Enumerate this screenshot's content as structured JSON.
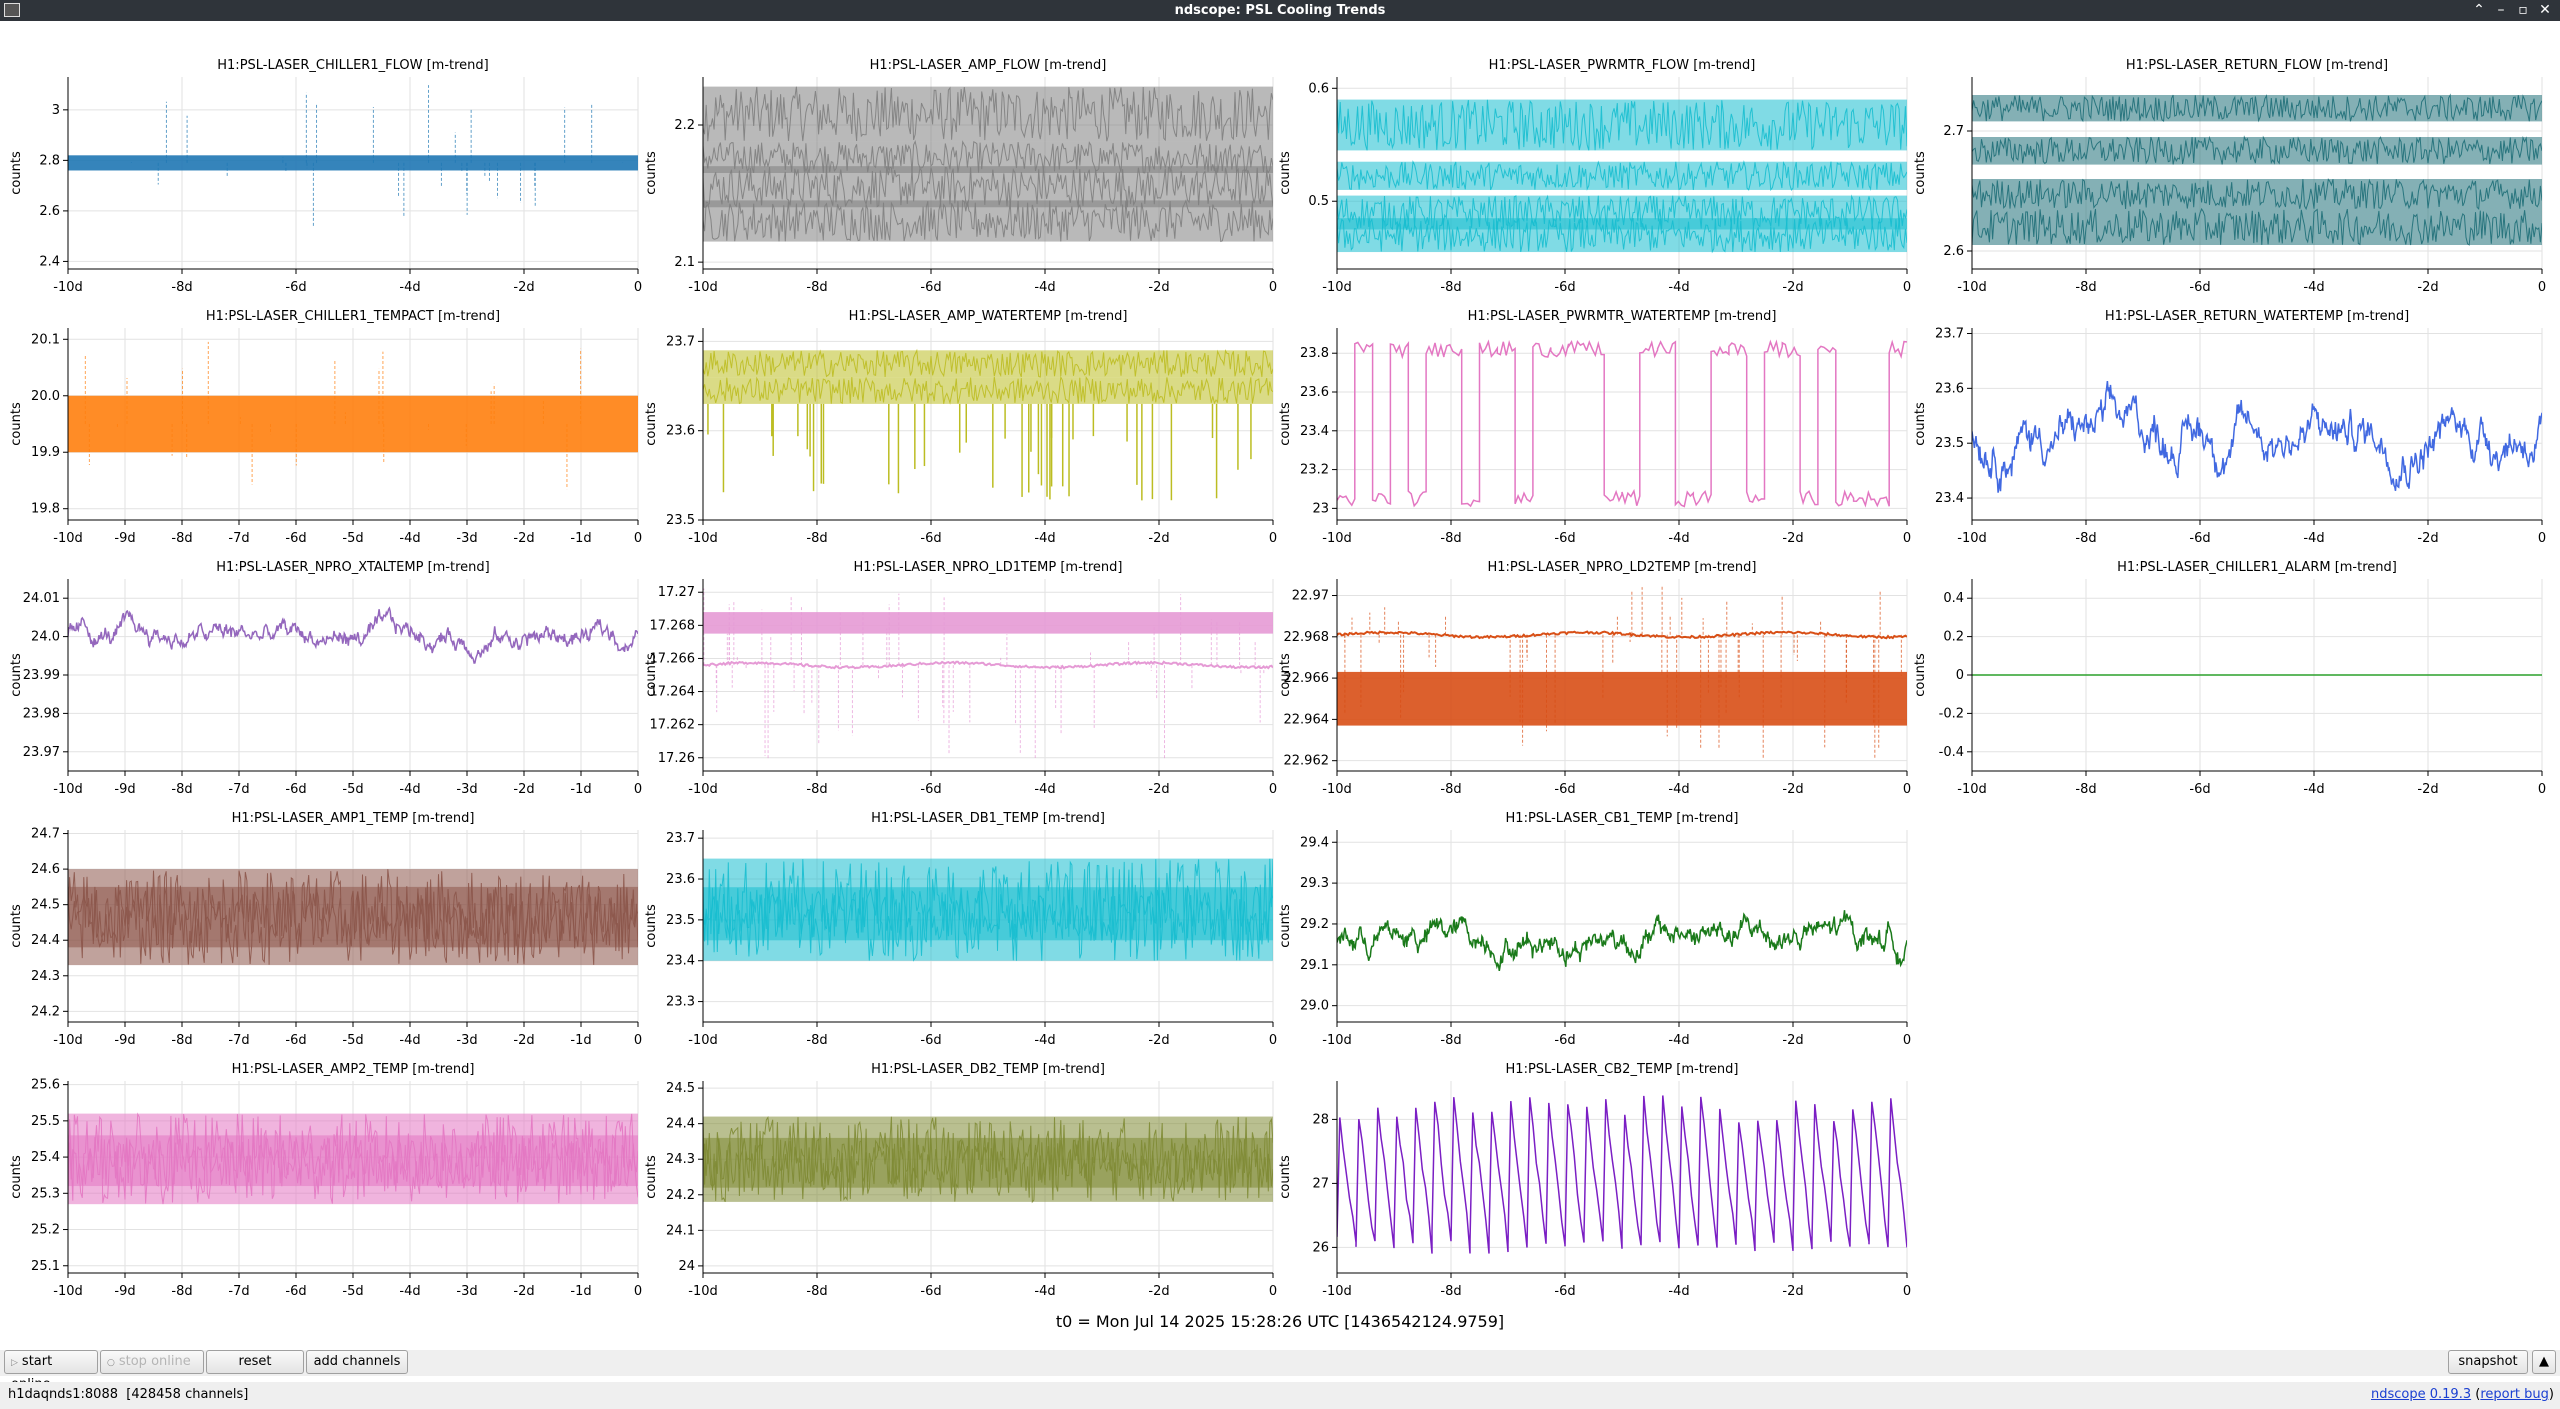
{
  "window": {
    "title": "ndscope: PSL Cooling Trends"
  },
  "colors": {
    "titlebar": "#2f343a",
    "grid": "#e2e2e2",
    "axis": "#000000",
    "zero_line": "#2ca02c"
  },
  "t0_label": "t0 = Mon Jul 14 2025 15:28:26 UTC [1436542124.9759]",
  "toolbar": {
    "start_online": "start online",
    "stop_online": "stop online",
    "reset": "reset",
    "add_channels": "add channels",
    "snapshot": "snapshot"
  },
  "statusbar": {
    "server": "h1daqnds1:8088",
    "channel_count": "[428458 channels]",
    "app_name": "ndscope",
    "version": "0.19.3",
    "report_bug": "report bug"
  },
  "chart_data": [
    {
      "type": "line",
      "title": "H1:PSL-LASER_CHILLER1_FLOW [m-trend]",
      "ylabel": "counts",
      "color": "#1f77b4",
      "xticks": [
        "-10d",
        "-8d",
        "-6d",
        "-4d",
        "-2d",
        "0"
      ],
      "yticks": [
        "2.4",
        "2.6",
        "2.8",
        "3"
      ],
      "ylim": [
        2.37,
        3.13
      ],
      "style": "band",
      "bands": [
        [
          2.76,
          2.82
        ]
      ],
      "spikes": {
        "count": 30,
        "min": 2.52,
        "max": 3.1
      }
    },
    {
      "type": "line",
      "title": "H1:PSL-LASER_AMP_FLOW [m-trend]",
      "ylabel": "counts",
      "color": "#7f7f7f",
      "xticks": [
        "-10d",
        "-8d",
        "-6d",
        "-4d",
        "-2d",
        "0"
      ],
      "yticks": [
        "2.1",
        "2.2"
      ],
      "ylim": [
        2.095,
        2.235
      ],
      "style": "noise",
      "bands": [
        [
          2.188,
          2.228
        ],
        [
          2.165,
          2.188
        ],
        [
          2.14,
          2.17
        ],
        [
          2.115,
          2.145
        ]
      ]
    },
    {
      "type": "line",
      "title": "H1:PSL-LASER_PWRMTR_FLOW [m-trend]",
      "ylabel": "counts",
      "color": "#17becf",
      "xticks": [
        "-10d",
        "-8d",
        "-6d",
        "-4d",
        "-2d",
        "0"
      ],
      "yticks": [
        "0.5",
        "0.6"
      ],
      "ylim": [
        0.44,
        0.61
      ],
      "style": "noise",
      "bands": [
        [
          0.545,
          0.59
        ],
        [
          0.51,
          0.535
        ],
        [
          0.475,
          0.505
        ],
        [
          0.455,
          0.485
        ]
      ]
    },
    {
      "type": "line",
      "title": "H1:PSL-LASER_RETURN_FLOW [m-trend]",
      "ylabel": "counts",
      "color": "#1f6f78",
      "xticks": [
        "-10d",
        "-8d",
        "-6d",
        "-4d",
        "-2d",
        "0"
      ],
      "yticks": [
        "2.6",
        "2.7"
      ],
      "ylim": [
        2.585,
        2.745
      ],
      "style": "noise",
      "bands": [
        [
          2.708,
          2.73
        ],
        [
          2.672,
          2.695
        ],
        [
          2.635,
          2.66
        ],
        [
          2.605,
          2.635
        ]
      ]
    },
    {
      "type": "line",
      "title": "H1:PSL-LASER_CHILLER1_TEMPACT [m-trend]",
      "ylabel": "counts",
      "color": "#ff7f0e",
      "xticks": [
        "-10d",
        "-9d",
        "-8d",
        "-7d",
        "-6d",
        "-5d",
        "-4d",
        "-3d",
        "-2d",
        "-1d",
        "0"
      ],
      "yticks": [
        "19.8",
        "19.9",
        "20.0",
        "20.1"
      ],
      "ylim": [
        19.78,
        20.12
      ],
      "style": "band",
      "bands": [
        [
          19.9,
          20.0
        ]
      ],
      "spikes": {
        "count": 24,
        "min": 19.81,
        "max": 20.1
      }
    },
    {
      "type": "line",
      "title": "H1:PSL-LASER_AMP_WATERTEMP [m-trend]",
      "ylabel": "counts",
      "color": "#bcbd22",
      "xticks": [
        "-10d",
        "-8d",
        "-6d",
        "-4d",
        "-2d",
        "0"
      ],
      "yticks": [
        "23.5",
        "23.6",
        "23.7"
      ],
      "ylim": [
        23.5,
        23.715
      ],
      "style": "noise",
      "bands": [
        [
          23.66,
          23.69
        ],
        [
          23.63,
          23.66
        ]
      ],
      "dips": {
        "count": 40,
        "min": 23.52,
        "max": 23.6
      }
    },
    {
      "type": "line",
      "title": "H1:PSL-LASER_PWRMTR_WATERTEMP [m-trend]",
      "ylabel": "counts",
      "color": "#e377c2",
      "xticks": [
        "-10d",
        "-8d",
        "-6d",
        "-4d",
        "-2d",
        "0"
      ],
      "yticks": [
        "23",
        "23.2",
        "23.4",
        "23.6",
        "23.8"
      ],
      "ylim": [
        22.94,
        23.93
      ],
      "style": "square",
      "low": 23.05,
      "high": 23.82,
      "transitions": 32
    },
    {
      "type": "line",
      "title": "H1:PSL-LASER_RETURN_WATERTEMP [m-trend]",
      "ylabel": "counts",
      "color": "#4169e1",
      "xticks": [
        "-10d",
        "-8d",
        "-6d",
        "-4d",
        "-2d",
        "0"
      ],
      "yticks": [
        "23.4",
        "23.5",
        "23.6",
        "23.7"
      ],
      "ylim": [
        23.36,
        23.71
      ],
      "style": "wander",
      "mean": 23.52,
      "amp": 0.11
    },
    {
      "type": "line",
      "title": "H1:PSL-LASER_NPRO_XTALTEMP [m-trend]",
      "ylabel": "counts",
      "color": "#9467bd",
      "xticks": [
        "-10d",
        "-9d",
        "-8d",
        "-7d",
        "-6d",
        "-5d",
        "-4d",
        "-3d",
        "-2d",
        "-1d",
        "0"
      ],
      "yticks": [
        "23.97",
        "23.98",
        "23.99",
        "24.0",
        "24.01"
      ],
      "ylim": [
        23.965,
        24.015
      ],
      "style": "wander",
      "mean": 24.0,
      "amp": 0.008
    },
    {
      "type": "line",
      "title": "H1:PSL-LASER_NPRO_LD1TEMP [m-trend]",
      "ylabel": "counts",
      "color": "#e59ad5",
      "xticks": [
        "-10d",
        "-8d",
        "-6d",
        "-4d",
        "-2d",
        "0"
      ],
      "yticks": [
        "17.26",
        "17.262",
        "17.264",
        "17.266",
        "17.268",
        "17.27"
      ],
      "ylim": [
        17.2592,
        17.2708
      ],
      "style": "ld",
      "bands": [
        [
          17.2675,
          17.2688
        ]
      ],
      "mean": 17.2656,
      "spikes": {
        "count": 60,
        "min": 17.2598,
        "max": 17.2705
      }
    },
    {
      "type": "line",
      "title": "H1:PSL-LASER_NPRO_LD2TEMP [m-trend]",
      "ylabel": "counts",
      "color": "#d84f16",
      "xticks": [
        "-10d",
        "-8d",
        "-6d",
        "-4d",
        "-2d",
        "0"
      ],
      "yticks": [
        "22.962",
        "22.964",
        "22.966",
        "22.968",
        "22.97"
      ],
      "ylim": [
        22.9615,
        22.9708
      ],
      "style": "ld",
      "bands": [
        [
          22.9637,
          22.9663
        ]
      ],
      "mean": 22.9681,
      "spikes": {
        "count": 60,
        "min": 22.962,
        "max": 22.9705
      }
    },
    {
      "type": "line",
      "title": "H1:PSL-LASER_CHILLER1_ALARM [m-trend]",
      "ylabel": "counts",
      "color": "#2ca02c",
      "xticks": [
        "-10d",
        "-8d",
        "-6d",
        "-4d",
        "-2d",
        "0"
      ],
      "yticks": [
        "-0.4",
        "-0.2",
        "0",
        "0.2",
        "0.4"
      ],
      "ylim": [
        -0.5,
        0.5
      ],
      "style": "flat",
      "mean": 0
    },
    {
      "type": "line",
      "title": "H1:PSL-LASER_AMP1_TEMP [m-trend]",
      "ylabel": "counts",
      "color": "#8c564b",
      "xticks": [
        "-10d",
        "-9d",
        "-8d",
        "-7d",
        "-6d",
        "-5d",
        "-4d",
        "-3d",
        "-2d",
        "-1d",
        "0"
      ],
      "yticks": [
        "24.2",
        "24.3",
        "24.4",
        "24.5",
        "24.6",
        "24.7"
      ],
      "ylim": [
        24.17,
        24.71
      ],
      "style": "noise",
      "bands": [
        [
          24.33,
          24.6
        ],
        [
          24.38,
          24.55
        ]
      ]
    },
    {
      "type": "line",
      "title": "H1:PSL-LASER_DB1_TEMP [m-trend]",
      "ylabel": "counts",
      "color": "#17becf",
      "xticks": [
        "-10d",
        "-8d",
        "-6d",
        "-4d",
        "-2d",
        "0"
      ],
      "yticks": [
        "23.3",
        "23.4",
        "23.5",
        "23.6",
        "23.7"
      ],
      "ylim": [
        23.25,
        23.72
      ],
      "style": "noise",
      "bands": [
        [
          23.4,
          23.65
        ],
        [
          23.45,
          23.58
        ]
      ]
    },
    {
      "type": "line",
      "title": "H1:PSL-LASER_CB1_TEMP [m-trend]",
      "ylabel": "counts",
      "color": "#1a7a1a",
      "xticks": [
        "-10d",
        "-8d",
        "-6d",
        "-4d",
        "-2d",
        "0"
      ],
      "yticks": [
        "29.0",
        "29.1",
        "29.2",
        "29.3",
        "29.4"
      ],
      "ylim": [
        28.96,
        29.43
      ],
      "style": "wander",
      "mean": 29.17,
      "amp": 0.1
    },
    {
      "type": "line",
      "title": "H1:PSL-LASER_AMP2_TEMP [m-trend]",
      "ylabel": "counts",
      "color": "#e377c2",
      "xticks": [
        "-10d",
        "-9d",
        "-8d",
        "-7d",
        "-6d",
        "-5d",
        "-4d",
        "-3d",
        "-2d",
        "-1d",
        "0"
      ],
      "yticks": [
        "25.1",
        "25.2",
        "25.3",
        "25.4",
        "25.5",
        "25.6"
      ],
      "ylim": [
        25.08,
        25.61
      ],
      "style": "noise",
      "bands": [
        [
          25.27,
          25.52
        ],
        [
          25.32,
          25.46
        ]
      ]
    },
    {
      "type": "line",
      "title": "H1:PSL-LASER_DB2_TEMP [m-trend]",
      "ylabel": "counts",
      "color": "#7f8b35",
      "xticks": [
        "-10d",
        "-8d",
        "-6d",
        "-4d",
        "-2d",
        "0"
      ],
      "yticks": [
        "24",
        "24.1",
        "24.2",
        "24.3",
        "24.4",
        "24.5"
      ],
      "ylim": [
        23.98,
        24.52
      ],
      "style": "noise",
      "bands": [
        [
          24.18,
          24.42
        ],
        [
          24.22,
          24.36
        ]
      ]
    },
    {
      "type": "line",
      "title": "H1:PSL-LASER_CB2_TEMP [m-trend]",
      "ylabel": "counts",
      "color": "#7b1fc4",
      "xticks": [
        "-10d",
        "-8d",
        "-6d",
        "-4d",
        "-2d",
        "0"
      ],
      "yticks": [
        "26",
        "27",
        "28"
      ],
      "ylim": [
        25.6,
        28.6
      ],
      "style": "sawtooth",
      "low": 26.0,
      "high": 28.4,
      "cycles": 30
    }
  ]
}
